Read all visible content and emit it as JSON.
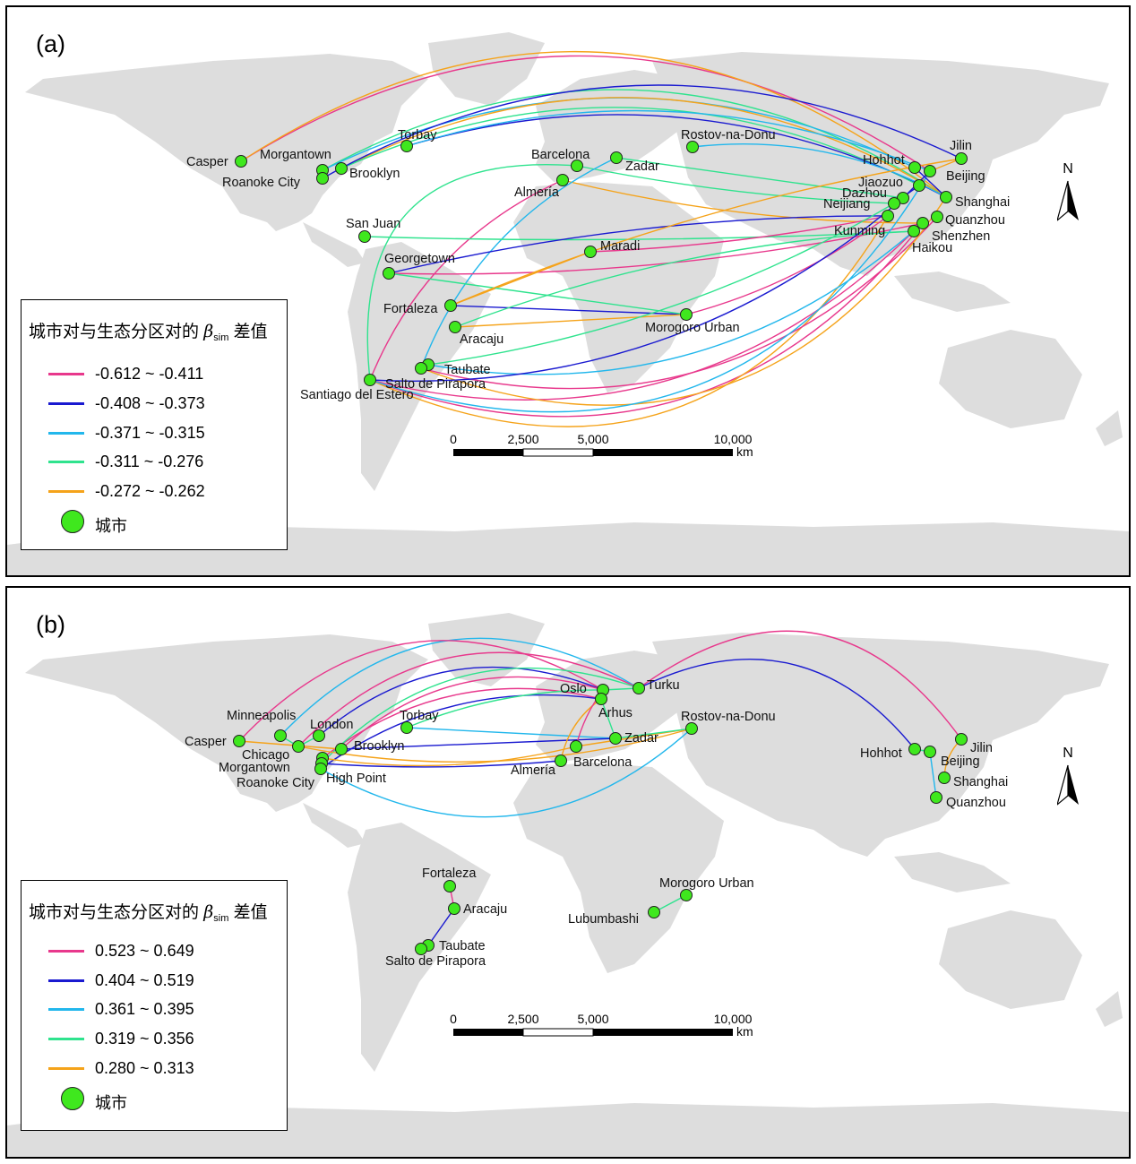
{
  "panels": [
    {
      "label": "(a)",
      "legend": {
        "title_prefix": "城市对与生态分区对的",
        "beta": "β",
        "beta_sub": "sim",
        "title_suffix": "差值",
        "classes": [
          {
            "label": "-0.612 ~ -0.411",
            "color": "#e8388c"
          },
          {
            "label": "-0.408 ~ -0.373",
            "color": "#1a1ad0"
          },
          {
            "label": "-0.371 ~ -0.315",
            "color": "#22b7ec"
          },
          {
            "label": "-0.311 ~ -0.276",
            "color": "#2fe38e"
          },
          {
            "label": "-0.272 ~ -0.262",
            "color": "#f5a31a"
          }
        ],
        "city_label": "城市"
      },
      "cities": [
        {
          "name": "Casper"
        },
        {
          "name": "Morgantown"
        },
        {
          "name": "Roanoke City"
        },
        {
          "name": "Brooklyn"
        },
        {
          "name": "Torbay"
        },
        {
          "name": "Barcelona"
        },
        {
          "name": "Zadar"
        },
        {
          "name": "Almería"
        },
        {
          "name": "Rostov-na-Donu"
        },
        {
          "name": "San Juan"
        },
        {
          "name": "Maradi"
        },
        {
          "name": "Georgetown"
        },
        {
          "name": "Fortaleza"
        },
        {
          "name": "Aracaju"
        },
        {
          "name": "Morogoro Urban"
        },
        {
          "name": "Taubate"
        },
        {
          "name": "Salto de Pirapora"
        },
        {
          "name": "Santiago del Estero"
        },
        {
          "name": "Hohhot"
        },
        {
          "name": "Jilin"
        },
        {
          "name": "Beijing"
        },
        {
          "name": "Jiaozuo"
        },
        {
          "name": "Dazhou"
        },
        {
          "name": "Neijiang"
        },
        {
          "name": "Shanghai"
        },
        {
          "name": "Kunming"
        },
        {
          "name": "Quanzhou"
        },
        {
          "name": "Shenzhen"
        },
        {
          "name": "Haikou"
        }
      ]
    },
    {
      "label": "(b)",
      "legend": {
        "title_prefix": "城市对与生态分区对的",
        "beta": "β",
        "beta_sub": "sim",
        "title_suffix": "差值",
        "classes": [
          {
            "label": "0.523 ~ 0.649",
            "color": "#e8388c"
          },
          {
            "label": "0.404 ~ 0.519",
            "color": "#1a1ad0"
          },
          {
            "label": "0.361 ~ 0.395",
            "color": "#22b7ec"
          },
          {
            "label": "0.319 ~ 0.356",
            "color": "#2fe38e"
          },
          {
            "label": "0.280 ~ 0.313",
            "color": "#f5a31a"
          }
        ],
        "city_label": "城市"
      },
      "cities": [
        {
          "name": "Minneapolis"
        },
        {
          "name": "Casper"
        },
        {
          "name": "Chicago"
        },
        {
          "name": "London"
        },
        {
          "name": "Morgantown"
        },
        {
          "name": "Roanoke City"
        },
        {
          "name": "High Point"
        },
        {
          "name": "Brooklyn"
        },
        {
          "name": "Torbay"
        },
        {
          "name": "Oslo"
        },
        {
          "name": "Turku"
        },
        {
          "name": "Arhus"
        },
        {
          "name": "Zadar"
        },
        {
          "name": "Almería"
        },
        {
          "name": "Barcelona"
        },
        {
          "name": "Rostov-na-Donu"
        },
        {
          "name": "Hohhot"
        },
        {
          "name": "Beijing"
        },
        {
          "name": "Jilin"
        },
        {
          "name": "Shanghai"
        },
        {
          "name": "Quanzhou"
        },
        {
          "name": "Fortaleza"
        },
        {
          "name": "Aracaju"
        },
        {
          "name": "Taubate"
        },
        {
          "name": "Salto de Pirapora"
        },
        {
          "name": "Morogoro Urban"
        },
        {
          "name": "Lubumbashi"
        }
      ]
    }
  ],
  "scale_bar": {
    "ticks": [
      "0",
      "2,500",
      "5,000",
      "10,000"
    ],
    "unit": "km"
  },
  "north_arrow": {
    "letter": "N",
    "icon": "north-arrow-icon"
  },
  "colors": {
    "land": "#dddddd",
    "city_fill": "#3fe81e",
    "city_stroke": "#222222"
  }
}
